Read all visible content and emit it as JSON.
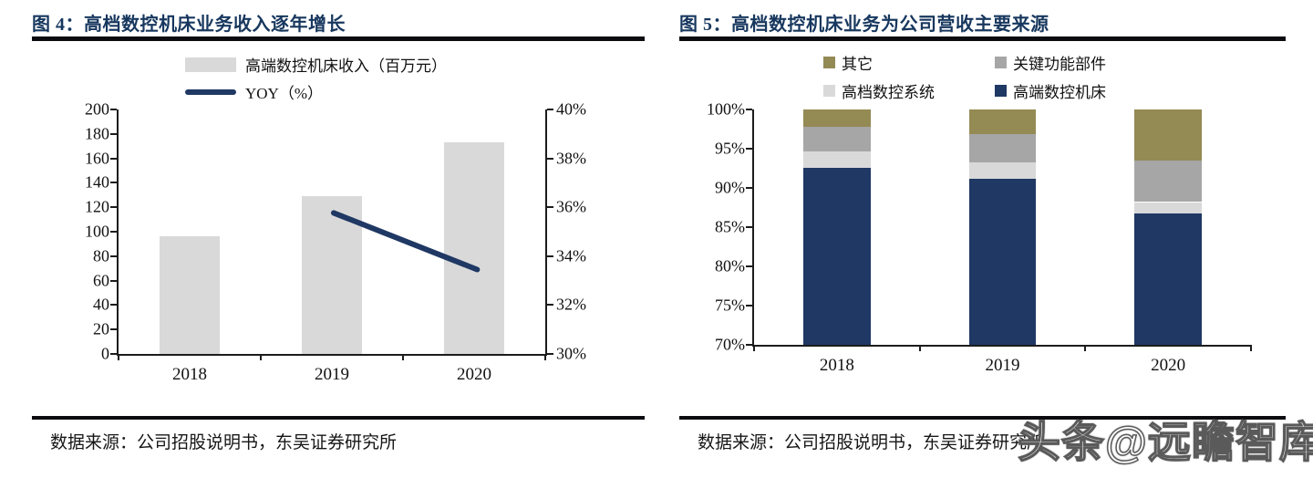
{
  "theme": {
    "title_color": "#17375E",
    "rule_color": "#0b0b10",
    "axis_color": "#1c1c1c"
  },
  "watermark": {
    "text": "头条@远瞻智库"
  },
  "figures": [
    {
      "title": "图 4：高档数控机床业务收入逐年增长",
      "source": "数据来源：公司招股说明书，东吴证券研究所"
    },
    {
      "title": "图 5：高档数控机床业务为公司营收主要来源",
      "source": "数据来源：公司招股说明书，东吴证券研究所"
    }
  ],
  "chart_data": [
    {
      "type": "bar",
      "title": "图 4：高档数控机床业务收入逐年增长",
      "categories": [
        "2018",
        "2019",
        "2020"
      ],
      "series": [
        {
          "key": "revenue",
          "name": "高端数控机床收入（百万元）",
          "type": "bar",
          "axis": "left",
          "color": "#D9D9D9",
          "values": [
            96,
            129,
            173
          ]
        },
        {
          "key": "yoy",
          "name": "YOY（%）",
          "type": "line",
          "axis": "right",
          "color": "#1F3864",
          "values": [
            null,
            35.8,
            33.5
          ]
        }
      ],
      "left_axis": {
        "min": 0,
        "max": 200,
        "step": 20,
        "tick_labels": [
          "200",
          "180",
          "160",
          "140",
          "120",
          "100",
          "80",
          "60",
          "40",
          "20",
          "0"
        ]
      },
      "right_axis": {
        "min": 30,
        "max": 40,
        "step": 2,
        "tick_labels": [
          "40%",
          "38%",
          "36%",
          "34%",
          "32%",
          "30%"
        ]
      },
      "legend_position": "top",
      "grid": false
    },
    {
      "type": "stacked-bar-100",
      "title": "图 5：高档数控机床业务为公司营收主要来源",
      "categories": [
        "2018",
        "2019",
        "2020"
      ],
      "series": [
        {
          "key": "machine-tools",
          "name": "高端数控机床",
          "color": "#1F3864",
          "values": [
            92.6,
            91.2,
            86.7
          ]
        },
        {
          "key": "cnc-systems",
          "name": "高档数控系统",
          "color": "#D9D9D9",
          "values": [
            2.1,
            2.1,
            1.5
          ]
        },
        {
          "key": "key-components",
          "name": "关键功能部件",
          "color": "#A6A6A6",
          "values": [
            3.1,
            3.6,
            5.3
          ]
        },
        {
          "key": "others",
          "name": "其它",
          "color": "#948A54",
          "values": [
            2.2,
            3.1,
            6.5
          ]
        }
      ],
      "legend_order": [
        "其它",
        "关键功能部件",
        "高档数控系统",
        "高端数控机床"
      ],
      "y_axis": {
        "min": 70,
        "max": 100,
        "step": 5,
        "tick_labels": [
          "100%",
          "95%",
          "90%",
          "85%",
          "80%",
          "75%",
          "70%"
        ]
      },
      "legend_position": "top",
      "grid": false
    }
  ]
}
